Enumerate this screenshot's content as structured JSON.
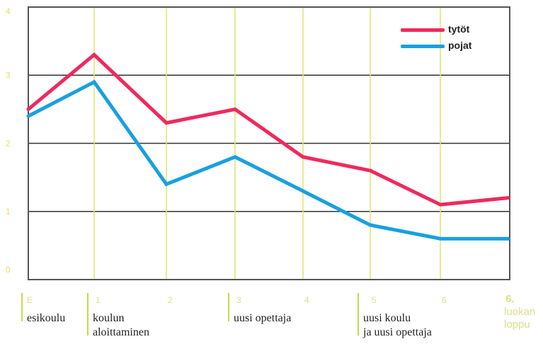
{
  "chart_data": {
    "type": "line",
    "x": [
      "E",
      "1",
      "2",
      "3",
      "4",
      "5",
      "6",
      "6."
    ],
    "y_ticks": [
      "4",
      "3",
      "2",
      "1",
      "0"
    ],
    "ylim": [
      0,
      4
    ],
    "grid": true,
    "legend_position": "top-right",
    "series": [
      {
        "name": "tytöt",
        "color": "#ee2a5e",
        "values": [
          2.5,
          3.3,
          2.3,
          2.5,
          1.8,
          1.6,
          1.1,
          1.2
        ]
      },
      {
        "name": "pojat",
        "color": "#18a0e0",
        "values": [
          2.4,
          2.9,
          1.4,
          1.8,
          1.3,
          0.8,
          0.6,
          0.6
        ]
      }
    ],
    "bottom_labels": [
      {
        "tick": "E",
        "text": "esikoulu"
      },
      {
        "tick": "1",
        "text": "koulun\naloittaminen"
      },
      {
        "tick": "2",
        "text": ""
      },
      {
        "tick": "3",
        "text": "uusi opettaja"
      },
      {
        "tick": "4",
        "text": ""
      },
      {
        "tick": "5",
        "text": "uusi koulu\nja uusi opettaja"
      },
      {
        "tick": "6",
        "text": ""
      },
      {
        "tick": "6.",
        "text": "luokan\nloppu"
      }
    ]
  }
}
